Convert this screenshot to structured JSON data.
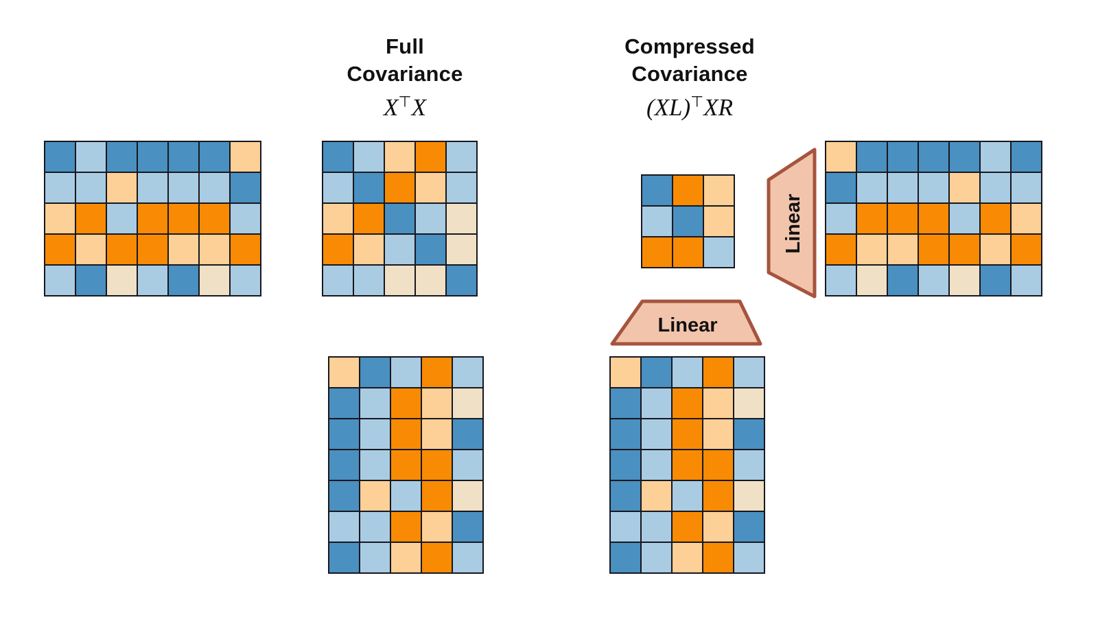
{
  "background": "#ffffff",
  "palette": {
    "B": "#4a90c0",
    "b": "#a9cce3",
    "O": "#f88b03",
    "o": "#fcd096",
    "c": "#f0e1c6",
    "grid_line": "#17171f"
  },
  "headers": {
    "full": {
      "title": [
        "Full",
        "Covariance"
      ],
      "formula": {
        "pre": "X",
        "sup": "⊤",
        "post": "X"
      }
    },
    "compressed": {
      "title": [
        "Compressed",
        "Covariance"
      ],
      "formula": {
        "pre": "(XL)",
        "sup": "⊤",
        "post": "XR"
      }
    }
  },
  "operators": {
    "fill": "#f2c4ab",
    "stroke": "#a5543e",
    "bottom": {
      "label": "Linear"
    },
    "right": {
      "label": "Linear"
    }
  },
  "matrices": {
    "x_input": {
      "description": "data matrix X, 5 rows x 7 cols, top left",
      "rows": [
        [
          "B",
          "b",
          "B",
          "B",
          "B",
          "B",
          "o"
        ],
        [
          "b",
          "b",
          "o",
          "b",
          "b",
          "b",
          "B"
        ],
        [
          "o",
          "O",
          "b",
          "O",
          "O",
          "O",
          "b"
        ],
        [
          "O",
          "o",
          "O",
          "O",
          "o",
          "o",
          "O"
        ],
        [
          "b",
          "B",
          "c",
          "b",
          "B",
          "c",
          "b"
        ]
      ]
    },
    "full_covariance": {
      "description": "full covariance X^T X, 5x5",
      "rows": [
        [
          "B",
          "b",
          "o",
          "O",
          "b"
        ],
        [
          "b",
          "B",
          "O",
          "o",
          "b"
        ],
        [
          "o",
          "O",
          "B",
          "b",
          "c"
        ],
        [
          "O",
          "o",
          "b",
          "B",
          "c"
        ],
        [
          "b",
          "b",
          "c",
          "c",
          "B"
        ]
      ]
    },
    "compressed_covariance": {
      "description": "compressed covariance (XL)^T XR, 3x3",
      "rows": [
        [
          "B",
          "O",
          "o"
        ],
        [
          "b",
          "B",
          "o"
        ],
        [
          "O",
          "O",
          "b"
        ]
      ]
    },
    "xr_input": {
      "description": "matrix XR, 5 rows x 7 cols, top right",
      "rows": [
        [
          "o",
          "B",
          "B",
          "B",
          "B",
          "b",
          "B"
        ],
        [
          "B",
          "b",
          "b",
          "b",
          "o",
          "b",
          "b"
        ],
        [
          "b",
          "O",
          "O",
          "O",
          "b",
          "O",
          "o"
        ],
        [
          "O",
          "o",
          "o",
          "O",
          "O",
          "o",
          "O"
        ],
        [
          "b",
          "c",
          "B",
          "b",
          "c",
          "B",
          "b"
        ]
      ]
    },
    "xt_input": {
      "description": "transposed matrix X^T, 7 rows x 5 cols, bottom left",
      "rows": [
        [
          "o",
          "B",
          "b",
          "O",
          "b"
        ],
        [
          "B",
          "b",
          "O",
          "o",
          "c"
        ],
        [
          "B",
          "b",
          "O",
          "o",
          "B"
        ],
        [
          "B",
          "b",
          "O",
          "O",
          "b"
        ],
        [
          "B",
          "o",
          "b",
          "O",
          "c"
        ],
        [
          "b",
          "b",
          "O",
          "o",
          "B"
        ],
        [
          "B",
          "b",
          "o",
          "O",
          "b"
        ]
      ]
    },
    "xlt_input": {
      "description": "transposed compressed matrix (XL)^T, 7 rows x 5 cols, bottom middle",
      "rows": [
        [
          "o",
          "B",
          "b",
          "O",
          "b"
        ],
        [
          "B",
          "b",
          "O",
          "o",
          "c"
        ],
        [
          "B",
          "b",
          "O",
          "o",
          "B"
        ],
        [
          "B",
          "b",
          "O",
          "O",
          "b"
        ],
        [
          "B",
          "o",
          "b",
          "O",
          "c"
        ],
        [
          "b",
          "b",
          "O",
          "o",
          "B"
        ],
        [
          "B",
          "b",
          "o",
          "O",
          "b"
        ]
      ]
    }
  }
}
